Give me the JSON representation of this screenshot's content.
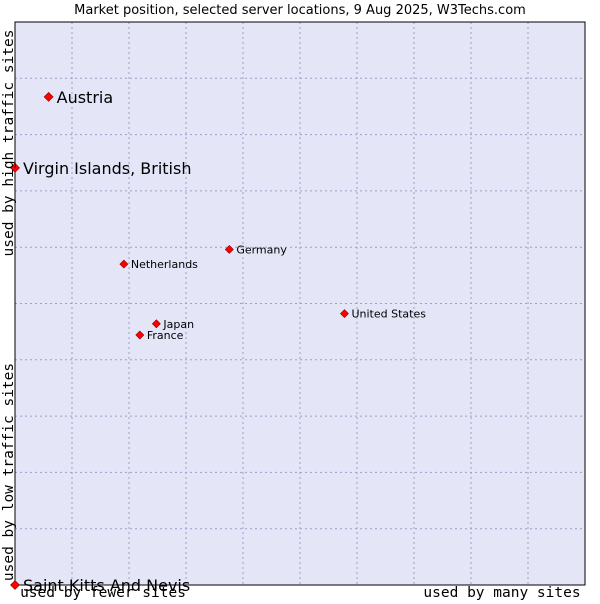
{
  "chart_data": {
    "type": "scatter",
    "title": "Market position, selected server locations, 9 Aug 2025, W3Techs.com",
    "xlabel_left": "used by fewer sites",
    "xlabel_right": "used by many sites",
    "ylabel_top": "used by high traffic sites",
    "ylabel_bottom": "used by low traffic sites",
    "xlim": [
      0,
      100
    ],
    "ylim": [
      0,
      100
    ],
    "grid": true,
    "colors": {
      "plot_background": "#e4e6f8",
      "grid": "#9aa0c8",
      "frame": "#000000",
      "marker": "#ff0000",
      "marker_edge": "#880000",
      "text": "#000000"
    },
    "points": [
      {
        "label": "Austria",
        "x": 5.9,
        "y": 86.7,
        "size": "large"
      },
      {
        "label": "Virgin Islands, British",
        "x": 0.0,
        "y": 74.1,
        "size": "large"
      },
      {
        "label": "Germany",
        "x": 37.6,
        "y": 59.6,
        "size": "small"
      },
      {
        "label": "Netherlands",
        "x": 19.1,
        "y": 57.0,
        "size": "small"
      },
      {
        "label": "United States",
        "x": 57.8,
        "y": 48.2,
        "size": "small"
      },
      {
        "label": "Japan",
        "x": 24.8,
        "y": 46.4,
        "size": "small"
      },
      {
        "label": "France",
        "x": 21.9,
        "y": 44.4,
        "size": "small"
      },
      {
        "label": "Saint Kitts And Nevis",
        "x": 0.0,
        "y": 0.0,
        "size": "large"
      }
    ]
  }
}
